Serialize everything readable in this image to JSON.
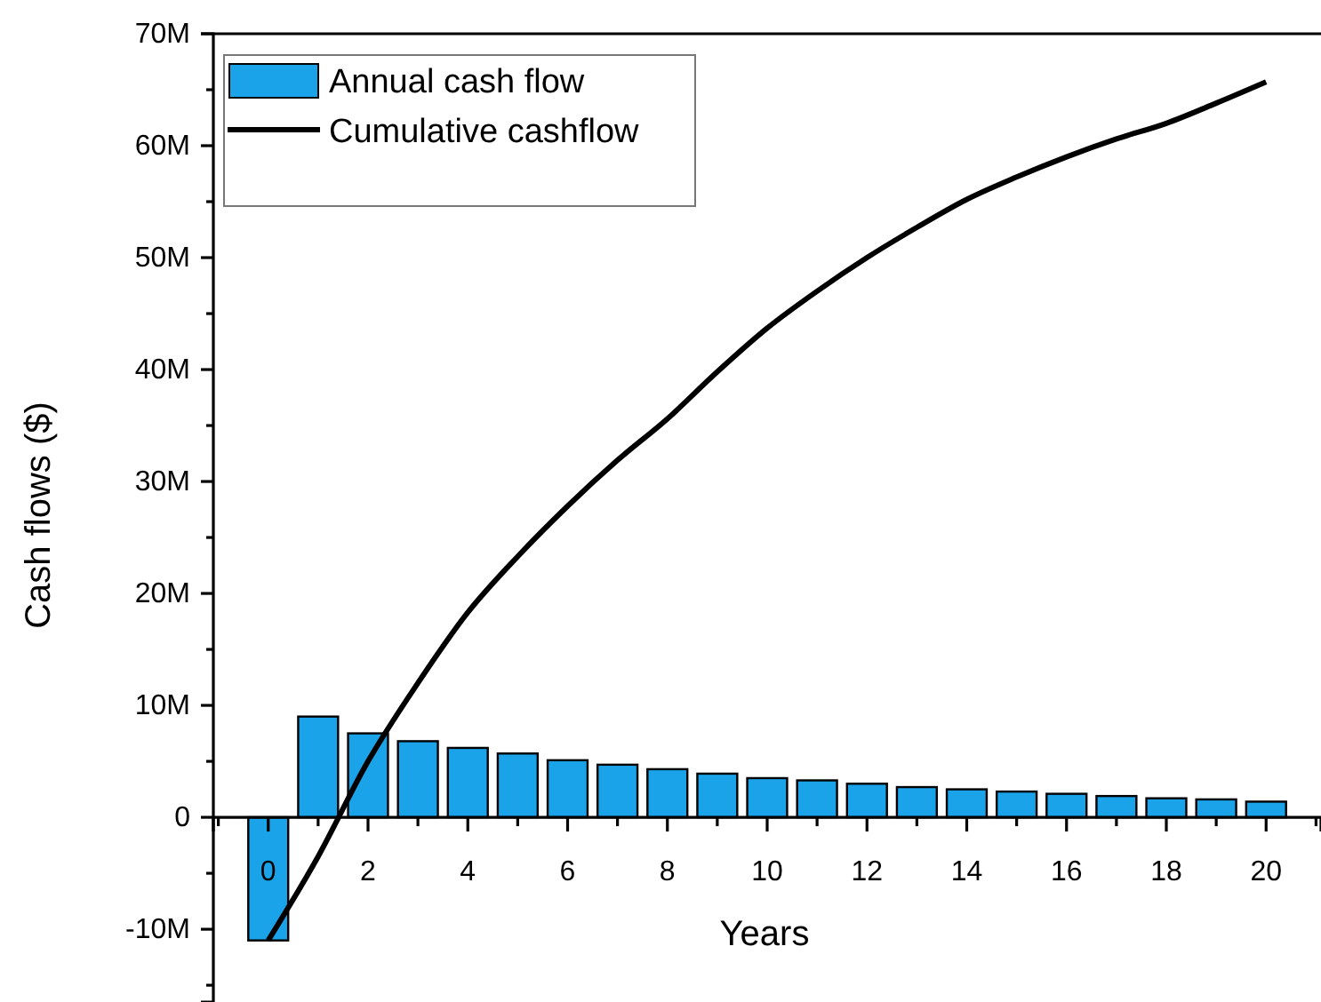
{
  "chart_data": {
    "type": "bar",
    "xlabel": "Years",
    "ylabel": "Cash flows ($)",
    "x": [
      0,
      1,
      2,
      3,
      4,
      5,
      6,
      7,
      8,
      9,
      10,
      11,
      12,
      13,
      14,
      15,
      16,
      17,
      18,
      19,
      20
    ],
    "series": [
      {
        "name": "Annual cash flow",
        "color": "#1aa3e8",
        "values": [
          -11,
          9.0,
          7.5,
          6.8,
          6.2,
          5.7,
          5.1,
          4.7,
          4.3,
          3.9,
          3.5,
          3.3,
          3.0,
          2.7,
          2.5,
          2.3,
          2.1,
          1.9,
          1.7,
          1.6,
          1.4
        ]
      },
      {
        "name": "Cumulative cashflow",
        "type": "line",
        "color": "#000000",
        "values": [
          -11,
          -3.5,
          5,
          12,
          18.3,
          23.3,
          27.8,
          31.9,
          35.6,
          39.8,
          43.7,
          47,
          50,
          52.7,
          55.2,
          57.2,
          59,
          60.6,
          62,
          63.8,
          65.7
        ]
      }
    ],
    "xlim": [
      -1.1,
      21.1
    ],
    "xticks": [
      {
        "value": -1,
        "label": null
      },
      0,
      {
        "value": 1,
        "label": null
      },
      2,
      {
        "value": 3,
        "label": null
      },
      4,
      {
        "value": 5,
        "label": null
      },
      6,
      {
        "value": 7,
        "label": null
      },
      8,
      {
        "value": 9,
        "label": null
      },
      10,
      {
        "value": 11,
        "label": null
      },
      12,
      {
        "value": 13,
        "label": null
      },
      14,
      {
        "value": 15,
        "label": null
      },
      16,
      {
        "value": 17,
        "label": null
      },
      18,
      {
        "value": 19,
        "label": null
      },
      20,
      {
        "value": 21,
        "label": null
      }
    ],
    "ylim": [
      -16.5,
      70
    ],
    "yticks": [
      {
        "value": -15,
        "label": null
      },
      {
        "value": -10,
        "label": "-10M"
      },
      {
        "value": -5,
        "label": null
      },
      0,
      {
        "value": 5,
        "label": null
      },
      {
        "value": 10,
        "label": "10M"
      },
      {
        "value": 15,
        "label": null
      },
      {
        "value": 20,
        "label": "20M"
      },
      {
        "value": 25,
        "label": null
      },
      {
        "value": 30,
        "label": "30M"
      },
      {
        "value": 35,
        "label": null
      },
      {
        "value": 40,
        "label": "40M"
      },
      {
        "value": 45,
        "label": null
      },
      {
        "value": 50,
        "label": "50M"
      },
      {
        "value": 55,
        "label": null
      },
      {
        "value": 60,
        "label": "60M"
      },
      {
        "value": 65,
        "label": null
      },
      {
        "value": 70,
        "label": "70M"
      }
    ],
    "legend": "top left",
    "grid": false,
    "line_style": "solid",
    "marker": "none"
  }
}
